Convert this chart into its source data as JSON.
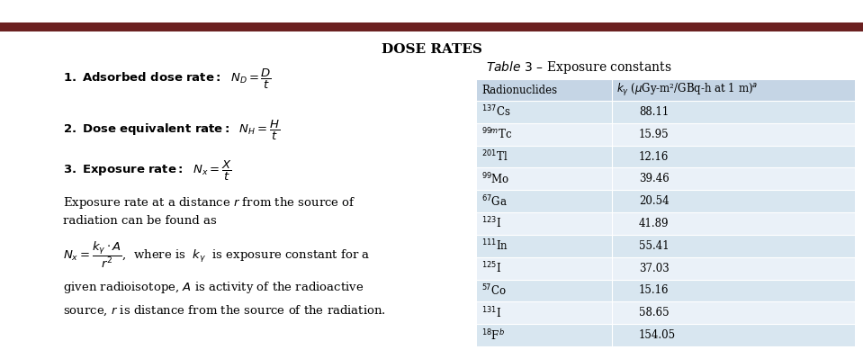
{
  "title": "DOSE RATES",
  "top_bar_color": "#6B2020",
  "background_color": "#FFFFFF",
  "table_header_bg": "#C5D5E5",
  "table_row_bg_odd": "#D8E6F0",
  "table_row_bg_even": "#EAF1F8",
  "radionuclides": [
    {
      "label": "$^{137}$Cs",
      "value": "88.11"
    },
    {
      "label": "$^{99m}$Tc",
      "value": "15.95"
    },
    {
      "label": "$^{201}$Tl",
      "value": "12.16"
    },
    {
      "label": "$^{99}$Mo",
      "value": "39.46"
    },
    {
      "label": "$^{67}$Ga",
      "value": "20.54"
    },
    {
      "label": "$^{123}$I",
      "value": "41.89"
    },
    {
      "label": "$^{111}$In",
      "value": "55.41"
    },
    {
      "label": "$^{125}$I",
      "value": "37.03"
    },
    {
      "label": "$^{57}$Co",
      "value": "15.16"
    },
    {
      "label": "$^{131}$I",
      "value": "58.65"
    },
    {
      "label": "$^{18}$F$^{b}$",
      "value": "154.05"
    }
  ]
}
